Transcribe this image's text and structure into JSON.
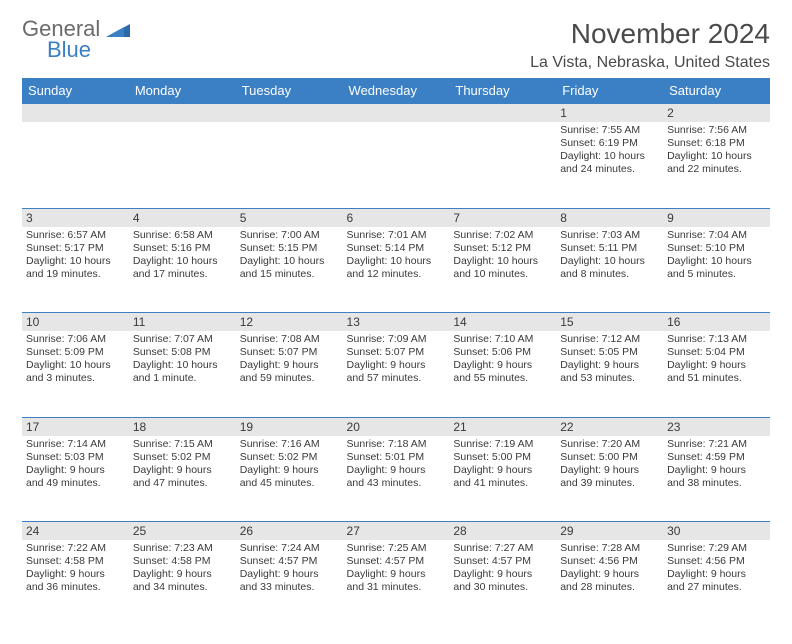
{
  "brand": {
    "text1": "General",
    "text2": "Blue"
  },
  "title": "November 2024",
  "location": "La Vista, Nebraska, United States",
  "colors": {
    "header_bg": "#3b7fc4",
    "header_text": "#ffffff",
    "daynum_bg": "#e6e6e6",
    "border": "#3b7fc4",
    "body_text": "#3a3a3a",
    "title_text": "#4a4a4a",
    "logo_gray": "#6b6b6b",
    "logo_blue": "#3b7fc4",
    "page_bg": "#ffffff"
  },
  "fonts": {
    "title_pt": 28,
    "location_pt": 16,
    "dayhead_pt": 13,
    "cell_pt": 10.5
  },
  "day_names": [
    "Sunday",
    "Monday",
    "Tuesday",
    "Wednesday",
    "Thursday",
    "Friday",
    "Saturday"
  ],
  "weeks": [
    [
      {
        "n": "",
        "sunrise": "",
        "sunset": "",
        "daylight": ""
      },
      {
        "n": "",
        "sunrise": "",
        "sunset": "",
        "daylight": ""
      },
      {
        "n": "",
        "sunrise": "",
        "sunset": "",
        "daylight": ""
      },
      {
        "n": "",
        "sunrise": "",
        "sunset": "",
        "daylight": ""
      },
      {
        "n": "",
        "sunrise": "",
        "sunset": "",
        "daylight": ""
      },
      {
        "n": "1",
        "sunrise": "Sunrise: 7:55 AM",
        "sunset": "Sunset: 6:19 PM",
        "daylight": "Daylight: 10 hours and 24 minutes."
      },
      {
        "n": "2",
        "sunrise": "Sunrise: 7:56 AM",
        "sunset": "Sunset: 6:18 PM",
        "daylight": "Daylight: 10 hours and 22 minutes."
      }
    ],
    [
      {
        "n": "3",
        "sunrise": "Sunrise: 6:57 AM",
        "sunset": "Sunset: 5:17 PM",
        "daylight": "Daylight: 10 hours and 19 minutes."
      },
      {
        "n": "4",
        "sunrise": "Sunrise: 6:58 AM",
        "sunset": "Sunset: 5:16 PM",
        "daylight": "Daylight: 10 hours and 17 minutes."
      },
      {
        "n": "5",
        "sunrise": "Sunrise: 7:00 AM",
        "sunset": "Sunset: 5:15 PM",
        "daylight": "Daylight: 10 hours and 15 minutes."
      },
      {
        "n": "6",
        "sunrise": "Sunrise: 7:01 AM",
        "sunset": "Sunset: 5:14 PM",
        "daylight": "Daylight: 10 hours and 12 minutes."
      },
      {
        "n": "7",
        "sunrise": "Sunrise: 7:02 AM",
        "sunset": "Sunset: 5:12 PM",
        "daylight": "Daylight: 10 hours and 10 minutes."
      },
      {
        "n": "8",
        "sunrise": "Sunrise: 7:03 AM",
        "sunset": "Sunset: 5:11 PM",
        "daylight": "Daylight: 10 hours and 8 minutes."
      },
      {
        "n": "9",
        "sunrise": "Sunrise: 7:04 AM",
        "sunset": "Sunset: 5:10 PM",
        "daylight": "Daylight: 10 hours and 5 minutes."
      }
    ],
    [
      {
        "n": "10",
        "sunrise": "Sunrise: 7:06 AM",
        "sunset": "Sunset: 5:09 PM",
        "daylight": "Daylight: 10 hours and 3 minutes."
      },
      {
        "n": "11",
        "sunrise": "Sunrise: 7:07 AM",
        "sunset": "Sunset: 5:08 PM",
        "daylight": "Daylight: 10 hours and 1 minute."
      },
      {
        "n": "12",
        "sunrise": "Sunrise: 7:08 AM",
        "sunset": "Sunset: 5:07 PM",
        "daylight": "Daylight: 9 hours and 59 minutes."
      },
      {
        "n": "13",
        "sunrise": "Sunrise: 7:09 AM",
        "sunset": "Sunset: 5:07 PM",
        "daylight": "Daylight: 9 hours and 57 minutes."
      },
      {
        "n": "14",
        "sunrise": "Sunrise: 7:10 AM",
        "sunset": "Sunset: 5:06 PM",
        "daylight": "Daylight: 9 hours and 55 minutes."
      },
      {
        "n": "15",
        "sunrise": "Sunrise: 7:12 AM",
        "sunset": "Sunset: 5:05 PM",
        "daylight": "Daylight: 9 hours and 53 minutes."
      },
      {
        "n": "16",
        "sunrise": "Sunrise: 7:13 AM",
        "sunset": "Sunset: 5:04 PM",
        "daylight": "Daylight: 9 hours and 51 minutes."
      }
    ],
    [
      {
        "n": "17",
        "sunrise": "Sunrise: 7:14 AM",
        "sunset": "Sunset: 5:03 PM",
        "daylight": "Daylight: 9 hours and 49 minutes."
      },
      {
        "n": "18",
        "sunrise": "Sunrise: 7:15 AM",
        "sunset": "Sunset: 5:02 PM",
        "daylight": "Daylight: 9 hours and 47 minutes."
      },
      {
        "n": "19",
        "sunrise": "Sunrise: 7:16 AM",
        "sunset": "Sunset: 5:02 PM",
        "daylight": "Daylight: 9 hours and 45 minutes."
      },
      {
        "n": "20",
        "sunrise": "Sunrise: 7:18 AM",
        "sunset": "Sunset: 5:01 PM",
        "daylight": "Daylight: 9 hours and 43 minutes."
      },
      {
        "n": "21",
        "sunrise": "Sunrise: 7:19 AM",
        "sunset": "Sunset: 5:00 PM",
        "daylight": "Daylight: 9 hours and 41 minutes."
      },
      {
        "n": "22",
        "sunrise": "Sunrise: 7:20 AM",
        "sunset": "Sunset: 5:00 PM",
        "daylight": "Daylight: 9 hours and 39 minutes."
      },
      {
        "n": "23",
        "sunrise": "Sunrise: 7:21 AM",
        "sunset": "Sunset: 4:59 PM",
        "daylight": "Daylight: 9 hours and 38 minutes."
      }
    ],
    [
      {
        "n": "24",
        "sunrise": "Sunrise: 7:22 AM",
        "sunset": "Sunset: 4:58 PM",
        "daylight": "Daylight: 9 hours and 36 minutes."
      },
      {
        "n": "25",
        "sunrise": "Sunrise: 7:23 AM",
        "sunset": "Sunset: 4:58 PM",
        "daylight": "Daylight: 9 hours and 34 minutes."
      },
      {
        "n": "26",
        "sunrise": "Sunrise: 7:24 AM",
        "sunset": "Sunset: 4:57 PM",
        "daylight": "Daylight: 9 hours and 33 minutes."
      },
      {
        "n": "27",
        "sunrise": "Sunrise: 7:25 AM",
        "sunset": "Sunset: 4:57 PM",
        "daylight": "Daylight: 9 hours and 31 minutes."
      },
      {
        "n": "28",
        "sunrise": "Sunrise: 7:27 AM",
        "sunset": "Sunset: 4:57 PM",
        "daylight": "Daylight: 9 hours and 30 minutes."
      },
      {
        "n": "29",
        "sunrise": "Sunrise: 7:28 AM",
        "sunset": "Sunset: 4:56 PM",
        "daylight": "Daylight: 9 hours and 28 minutes."
      },
      {
        "n": "30",
        "sunrise": "Sunrise: 7:29 AM",
        "sunset": "Sunset: 4:56 PM",
        "daylight": "Daylight: 9 hours and 27 minutes."
      }
    ]
  ]
}
